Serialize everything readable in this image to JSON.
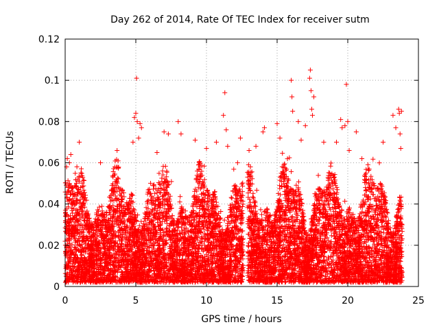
{
  "chart_data": {
    "type": "scatter",
    "title": "Day 262 of 2014, Rate Of TEC Index for receiver sutm",
    "xlabel": "GPS time / hours",
    "ylabel": "ROTI / TECUs",
    "xlim": [
      0,
      25
    ],
    "ylim": [
      0,
      0.12
    ],
    "xticks": [
      0,
      5,
      10,
      15,
      20,
      25
    ],
    "xtick_labels": [
      "0",
      "5",
      "10",
      "15",
      "20",
      "25"
    ],
    "yticks": [
      0,
      0.02,
      0.04,
      0.06,
      0.08,
      0.1,
      0.12
    ],
    "ytick_labels": [
      "0",
      "0.02",
      "0.04",
      "0.06",
      "0.08",
      "0.1",
      "0.12"
    ],
    "grid": true,
    "marker": "+",
    "series": [
      {
        "name": "ROTI",
        "color": "#ff0000",
        "x": [
          0.1,
          0.15,
          0.2,
          0.3,
          0.4,
          1.0,
          2.5,
          4.8,
          4.9,
          5.0,
          5.05,
          5.1,
          5.2,
          5.3,
          5.4,
          6.5,
          7.0,
          7.3,
          8.0,
          8.2,
          9.2,
          10.0,
          10.7,
          11.2,
          11.3,
          11.4,
          11.5,
          12.2,
          12.4,
          13.5,
          14.0,
          14.1,
          15.0,
          15.2,
          16.0,
          16.05,
          16.1,
          16.5,
          16.7,
          17.0,
          17.3,
          17.35,
          17.4,
          17.45,
          17.5,
          17.6,
          18.3,
          19.2,
          19.5,
          19.6,
          19.8,
          19.9,
          20.0,
          20.1,
          20.6,
          21.0,
          22.5,
          23.2,
          23.4,
          23.6,
          23.65,
          23.7,
          23.75,
          23.8
        ],
        "y": [
          0.058,
          0.062,
          0.048,
          0.06,
          0.064,
          0.07,
          0.06,
          0.07,
          0.082,
          0.084,
          0.101,
          0.08,
          0.072,
          0.079,
          0.077,
          0.065,
          0.075,
          0.074,
          0.08,
          0.074,
          0.071,
          0.067,
          0.07,
          0.083,
          0.094,
          0.076,
          0.068,
          0.06,
          0.072,
          0.068,
          0.075,
          0.077,
          0.079,
          0.072,
          0.1,
          0.092,
          0.085,
          0.08,
          0.071,
          0.078,
          0.101,
          0.105,
          0.095,
          0.086,
          0.083,
          0.092,
          0.07,
          0.07,
          0.081,
          0.077,
          0.078,
          0.098,
          0.08,
          0.066,
          0.075,
          0.062,
          0.07,
          0.083,
          0.077,
          0.086,
          0.084,
          0.074,
          0.067,
          0.085
        ]
      }
    ],
    "gaps": [
      [
        12.6,
        12.9
      ]
    ],
    "baseline_range": [
      0.002,
      0.05
    ]
  }
}
